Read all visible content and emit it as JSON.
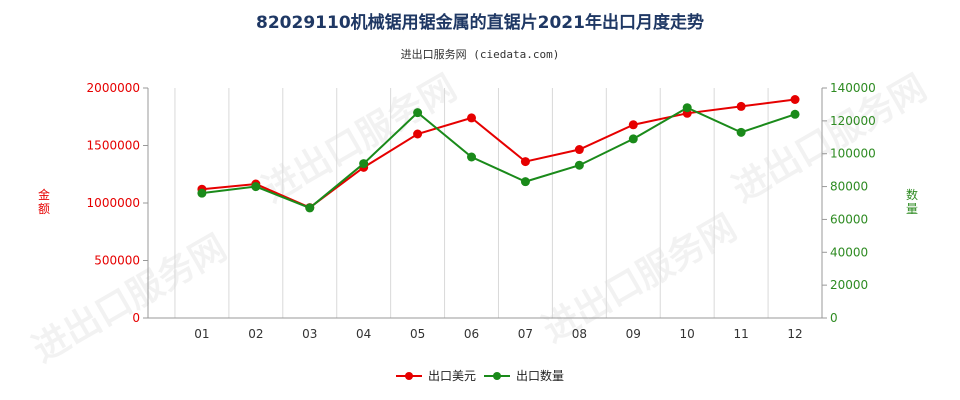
{
  "title": "82029110机械锯用锯金属的直锯片2021年出口月度走势",
  "subtitle": "进出口服务网 (ciedata.com)",
  "watermark": "进出口服务网",
  "chart_data": {
    "type": "line",
    "categories": [
      "01",
      "02",
      "03",
      "04",
      "05",
      "06",
      "07",
      "08",
      "09",
      "10",
      "11",
      "12"
    ],
    "y_left": {
      "label": "金额",
      "range": [
        0,
        2000000
      ],
      "ticks": [
        0,
        500000,
        1000000,
        1500000,
        2000000
      ],
      "color": "#e60000"
    },
    "y_right": {
      "label": "数量",
      "range": [
        0,
        140000
      ],
      "ticks": [
        0,
        20000,
        40000,
        60000,
        80000,
        100000,
        120000,
        140000
      ],
      "color": "#2e8b22"
    },
    "series": [
      {
        "name": "出口美元",
        "axis": "left",
        "color": "#e60000",
        "values": [
          1120000,
          1165000,
          960000,
          1310000,
          1600000,
          1740000,
          1360000,
          1465000,
          1680000,
          1780000,
          1840000,
          1900000
        ]
      },
      {
        "name": "出口数量",
        "axis": "right",
        "color": "#1a8a1a",
        "values": [
          76000,
          80000,
          67000,
          94000,
          125000,
          98000,
          83000,
          93000,
          109000,
          128000,
          113000,
          124000
        ]
      }
    ],
    "grid": "vertical",
    "legend_position": "bottom"
  }
}
